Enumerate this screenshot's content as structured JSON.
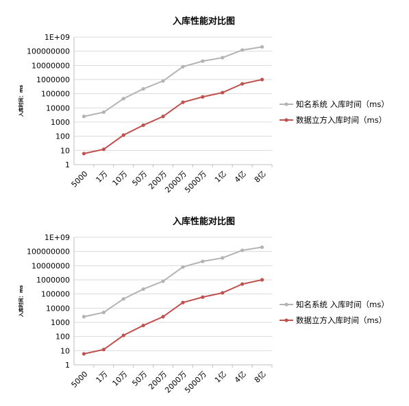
{
  "chart_data": [
    {
      "type": "line",
      "title": "入库性能对比图",
      "ylabel": "入库时间：ms",
      "xlabel": "",
      "yscale": "log",
      "ylim": [
        1,
        1000000000
      ],
      "yticks": [
        "1",
        "10",
        "100",
        "1000",
        "10000",
        "100000",
        "1000000",
        "10000000",
        "100000000",
        "1E+09"
      ],
      "categories": [
        "5000",
        "1万",
        "10万",
        "50万",
        "200万",
        "2000万",
        "5000万",
        "1亿",
        "4亿",
        "8亿"
      ],
      "grid": true,
      "legend_position": "right",
      "series": [
        {
          "name": "知名系统 入库时间（ms）",
          "color": "#b3b3b3",
          "values": [
            2500,
            5000,
            45000,
            220000,
            800000,
            8000000,
            20000000,
            35000000,
            120000000,
            200000000
          ]
        },
        {
          "name": "数据立方入库时间（ms）",
          "color": "#c0504d",
          "values": [
            6,
            12,
            120,
            600,
            2500,
            25000,
            60000,
            120000,
            500000,
            1000000
          ]
        }
      ]
    },
    {
      "type": "line",
      "title": "入库性能对比图",
      "ylabel": "入库时间：ms",
      "xlabel": "",
      "yscale": "log",
      "ylim": [
        1,
        1000000000
      ],
      "yticks": [
        "1",
        "10",
        "100",
        "1000",
        "10000",
        "100000",
        "1000000",
        "10000000",
        "100000000",
        "1E+09"
      ],
      "categories": [
        "5000",
        "1万",
        "10万",
        "50万",
        "200万",
        "2000万",
        "5000万",
        "1亿",
        "4亿",
        "8亿"
      ],
      "grid": true,
      "legend_position": "right",
      "series": [
        {
          "name": "知名系统 入库时间（ms）",
          "color": "#b3b3b3",
          "values": [
            2500,
            5000,
            45000,
            220000,
            800000,
            8000000,
            20000000,
            35000000,
            120000000,
            200000000
          ]
        },
        {
          "name": "数据立方入库时间（ms）",
          "color": "#c0504d",
          "values": [
            6,
            12,
            120,
            600,
            2500,
            25000,
            60000,
            120000,
            500000,
            1000000
          ]
        }
      ]
    }
  ]
}
